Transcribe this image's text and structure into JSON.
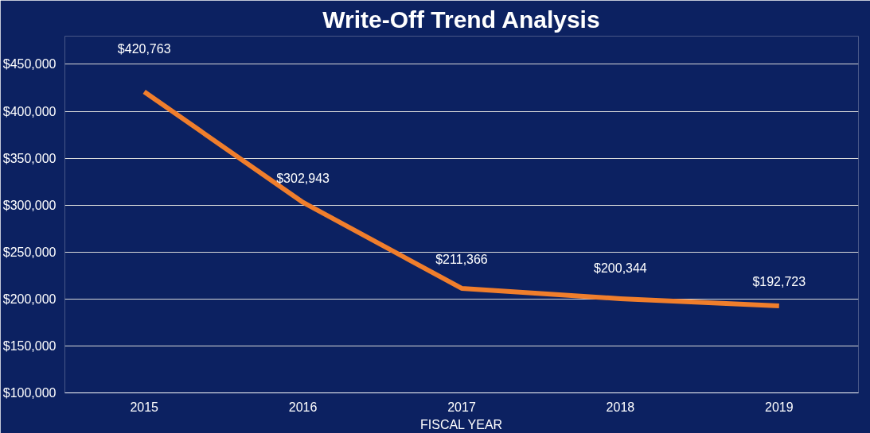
{
  "chart_data": {
    "type": "line",
    "title": "Write-Off Trend Analysis",
    "xlabel": "FISCAL YEAR",
    "categories": [
      "2015",
      "2016",
      "2017",
      "2018",
      "2019"
    ],
    "series": [
      {
        "color": "#f07e2c",
        "values": [
          420763,
          302943,
          211366,
          200344,
          192723
        ]
      }
    ],
    "value_labels": [
      "$420,763",
      "$302,943",
      "$211,366",
      "$200,344",
      "$192,723"
    ],
    "ylim": [
      100000,
      480000
    ],
    "yticks": [
      {
        "value": 100000,
        "label": "$100,000"
      },
      {
        "value": 150000,
        "label": "$150,000"
      },
      {
        "value": 200000,
        "label": "$200,000"
      },
      {
        "value": 250000,
        "label": "$250,000"
      },
      {
        "value": 300000,
        "label": "$300,000"
      },
      {
        "value": 350000,
        "label": "$350,000"
      },
      {
        "value": 400000,
        "label": "$400,000"
      },
      {
        "value": 450000,
        "label": "$450,000"
      }
    ],
    "grid": "y",
    "marker": "none",
    "line_style": "solid"
  }
}
